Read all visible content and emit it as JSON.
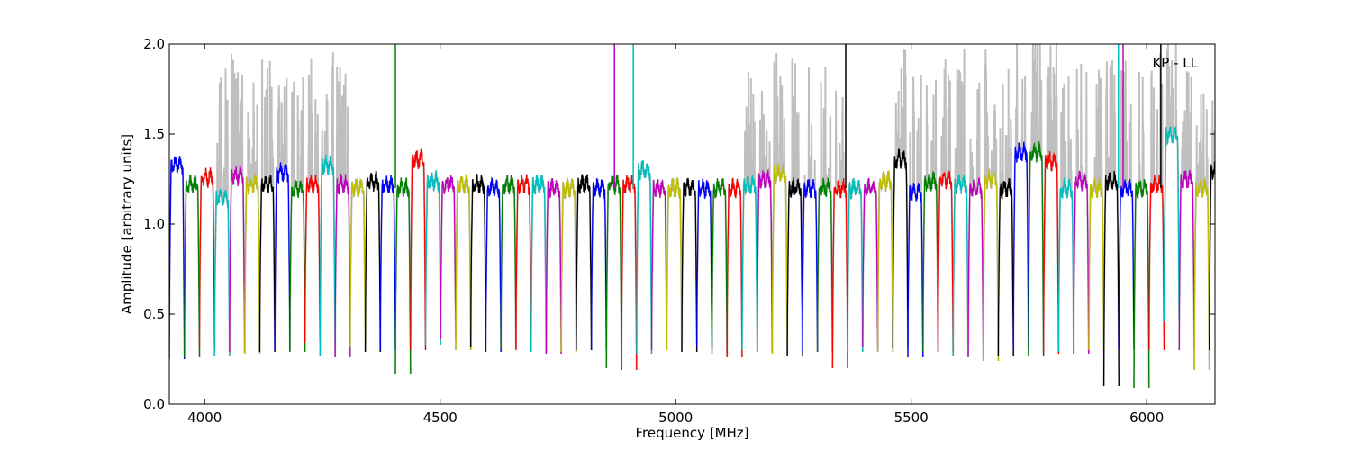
{
  "chart_data": {
    "type": "line",
    "title": "",
    "xlabel": "Frequency [MHz]",
    "ylabel": "Amplitude [arbitrary units]",
    "xlim": [
      3925,
      6145
    ],
    "ylim": [
      0.0,
      2.0
    ],
    "x_ticks": [
      4000,
      4500,
      5000,
      5500,
      6000
    ],
    "x_tick_labels": [
      "4000",
      "4500",
      "5000",
      "5500",
      "6000"
    ],
    "y_ticks": [
      0.0,
      0.5,
      1.0,
      1.5,
      2.0
    ],
    "y_tick_labels": [
      "0.0",
      "0.5",
      "1.0",
      "1.5",
      "2.0"
    ],
    "annotation": "KP - LL",
    "grid": false,
    "background_series_color": "#bfbfbf",
    "channel_colors": [
      "#0000ff",
      "#008000",
      "#ff0000",
      "#00bfbf",
      "#bf00bf",
      "#bfbf00",
      "#000000"
    ],
    "channel_width_mhz": 32,
    "channel_starts_mhz": [
      3925,
      3957,
      3989,
      4021,
      4053,
      4085,
      4117,
      4149,
      4181,
      4213,
      4245,
      4277,
      4309,
      4341,
      4373,
      4405,
      4437,
      4469,
      4501,
      4533,
      4565,
      4597,
      4629,
      4661,
      4693,
      4725,
      4757,
      4789,
      4821,
      4853,
      4885,
      4917,
      4949,
      4981,
      5013,
      5045,
      5077,
      5109,
      5141,
      5173,
      5205,
      5237,
      5269,
      5301,
      5333,
      5365,
      5397,
      5429,
      5461,
      5493,
      5525,
      5557,
      5589,
      5621,
      5653,
      5685,
      5717,
      5749,
      5781,
      5813,
      5845,
      5877,
      5909,
      5941,
      5973,
      6005,
      6037,
      6069,
      6101,
      6133
    ],
    "channel_levels": [
      1.33,
      1.22,
      1.26,
      1.15,
      1.27,
      1.22,
      1.22,
      1.29,
      1.2,
      1.22,
      1.33,
      1.22,
      1.2,
      1.24,
      1.22,
      1.2,
      1.36,
      1.24,
      1.22,
      1.22,
      1.22,
      1.2,
      1.22,
      1.22,
      1.22,
      1.2,
      1.2,
      1.22,
      1.2,
      1.22,
      1.22,
      1.3,
      1.2,
      1.2,
      1.2,
      1.2,
      1.2,
      1.2,
      1.22,
      1.25,
      1.28,
      1.2,
      1.2,
      1.2,
      1.2,
      1.2,
      1.2,
      1.24,
      1.36,
      1.18,
      1.24,
      1.25,
      1.22,
      1.2,
      1.25,
      1.2,
      1.4,
      1.4,
      1.35,
      1.2,
      1.24,
      1.2,
      1.24,
      1.2,
      1.2,
      1.22,
      1.5,
      1.25,
      1.2,
      1.3
    ],
    "channel_dips": [
      0.25,
      0.26,
      0.31,
      0.27,
      0.29,
      0.28,
      0.29,
      0.3,
      0.29,
      0.34,
      0.27,
      0.26,
      0.32,
      0.29,
      0.3,
      0.17,
      0.3,
      0.33,
      0.36,
      0.3,
      0.32,
      0.29,
      0.31,
      0.3,
      0.29,
      0.28,
      0.29,
      0.3,
      0.3,
      0.2,
      0.19,
      0.28,
      0.3,
      0.3,
      0.29,
      0.32,
      0.28,
      0.26,
      0.3,
      0.29,
      0.28,
      0.27,
      0.29,
      0.29,
      0.2,
      0.29,
      0.32,
      0.29,
      0.31,
      0.26,
      0.29,
      0.29,
      0.27,
      0.26,
      0.24,
      0.27,
      0.3,
      0.27,
      0.28,
      0.29,
      0.28,
      0.3,
      0.1,
      0.3,
      0.09,
      0.3,
      0.46,
      0.3,
      0.19,
      0.3
    ]
  }
}
